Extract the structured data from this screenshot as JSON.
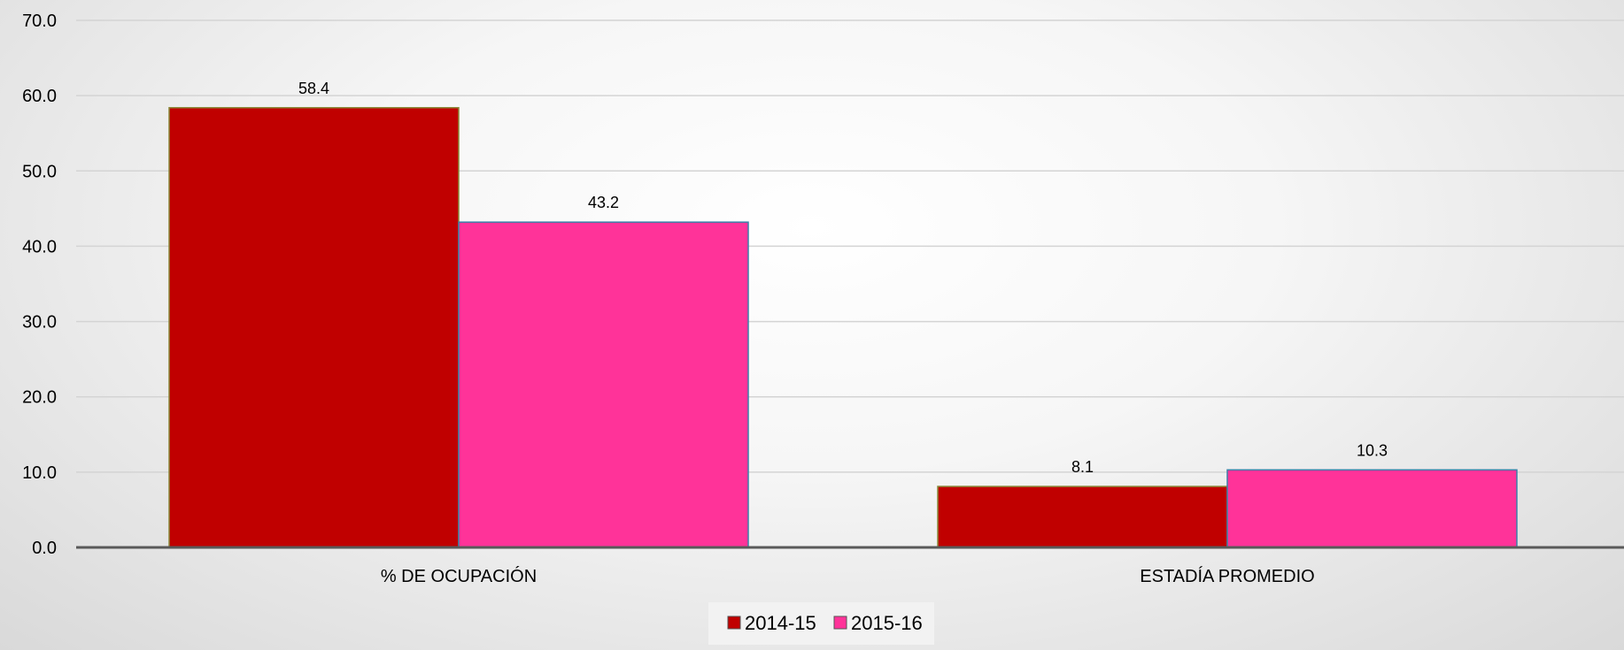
{
  "chart_data": {
    "type": "bar",
    "categories": [
      "% DE OCUPACIÓN",
      "ESTADÍA PROMEDIO"
    ],
    "series": [
      {
        "name": "2014-15",
        "values": [
          58.4,
          8.1
        ],
        "color": "#C00000"
      },
      {
        "name": "2015-16",
        "values": [
          43.2,
          10.3
        ],
        "color": "#FF3399"
      }
    ],
    "data_labels": [
      [
        "58.4",
        "8.1"
      ],
      [
        "43.2",
        "10.3"
      ]
    ],
    "ylim": [
      0,
      70
    ],
    "yticks": [
      "0.0",
      "10.0",
      "20.0",
      "30.0",
      "40.0",
      "50.0",
      "60.0",
      "70.0"
    ],
    "grid": true,
    "legend_position": "bottom",
    "title": "",
    "xlabel": "",
    "ylabel": ""
  }
}
